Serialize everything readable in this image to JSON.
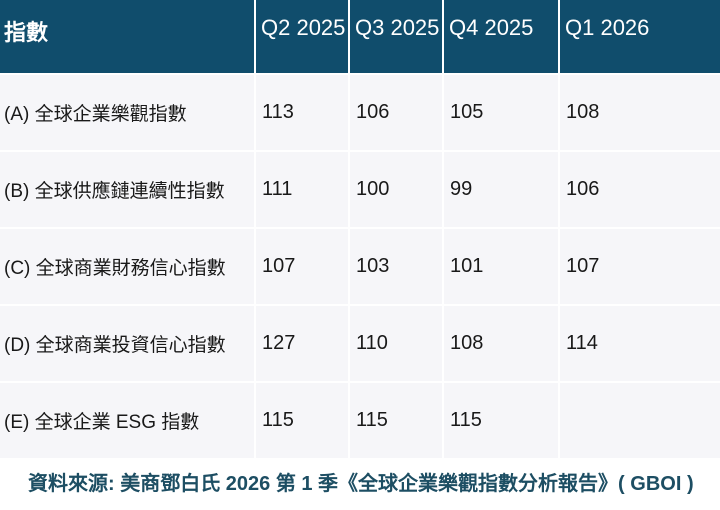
{
  "colors": {
    "header_bg": "#104D6C",
    "header_text": "#FFFFFF",
    "body_bg": "#F6F6F9",
    "grid_line": "#FFFFFF",
    "body_text": "#191919",
    "source_text": "#1D4E63",
    "page_bg": "#FFFFFF"
  },
  "source": {
    "text": "資料來源: 美商鄧白氏 2026 第 1 季《全球企業樂觀指數分析報告》( GBOI )"
  },
  "chart_data": {
    "type": "table",
    "title": "",
    "columns": [
      "指數",
      "Q2 2025",
      "Q3 2025",
      "Q4 2025",
      "Q1 2026"
    ],
    "rows": [
      {
        "label": "(A) 全球企業樂觀指數",
        "values": [
          113,
          106,
          105,
          108
        ]
      },
      {
        "label": "(B) 全球供應鏈連續性指數",
        "values": [
          111,
          100,
          99,
          106
        ]
      },
      {
        "label": "(C) 全球商業財務信心指數",
        "values": [
          107,
          103,
          101,
          107
        ]
      },
      {
        "label": "(D) 全球商業投資信心指數",
        "values": [
          127,
          110,
          108,
          114
        ]
      },
      {
        "label": "(E) 全球企業 ESG 指數",
        "values": [
          115,
          115,
          115,
          null
        ]
      }
    ],
    "layout": {
      "header_position": "top",
      "grid": true,
      "empty_cells": [
        "Q1 2026 of row E"
      ]
    },
    "source": "資料來源: 美商鄧白氏 2026 第 1 季《全球企業樂觀指數分析報告》( GBOI )"
  }
}
